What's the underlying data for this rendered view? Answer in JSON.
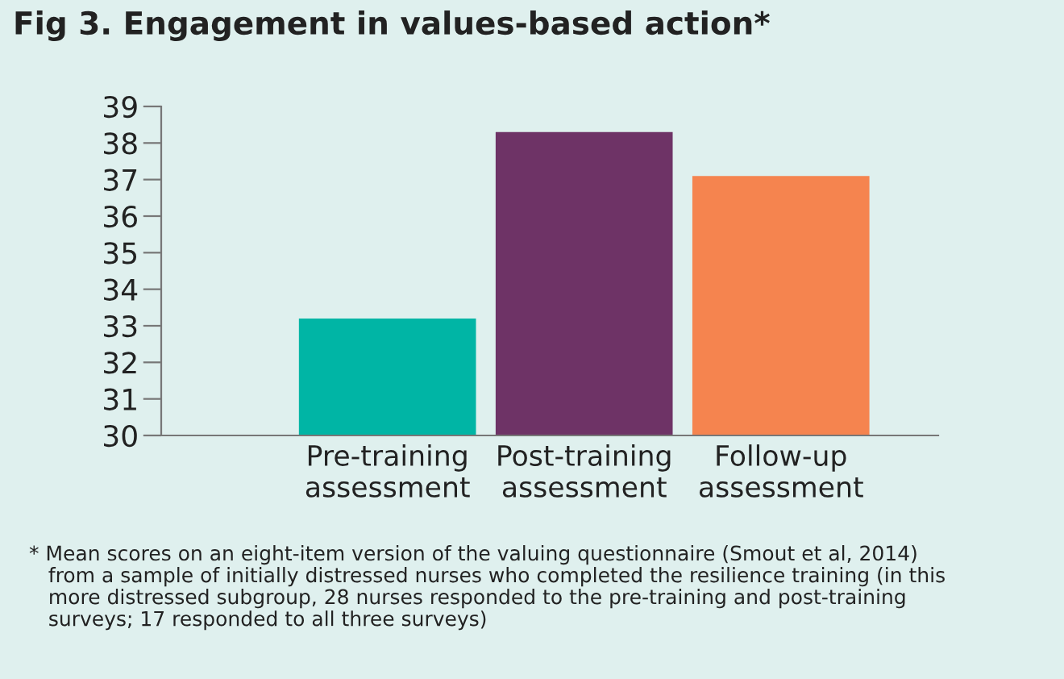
{
  "chart_data": {
    "type": "bar",
    "title": "Fig 3. Engagement in values-based action*",
    "categories": [
      "Pre-training\nassessment",
      "Post-training\nassessment",
      "Follow-up\nassessment"
    ],
    "values": [
      33.2,
      38.3,
      37.1
    ],
    "colors": [
      "#00b5a5",
      "#6e3366",
      "#f5844f"
    ],
    "ylim": [
      30,
      39
    ],
    "yticks": [
      30,
      31,
      32,
      33,
      34,
      35,
      36,
      37,
      38,
      39
    ],
    "grid": false,
    "annotations": [
      "* Mean scores on an eight-item version of the valuing questionnaire (Smout et al, 2014)\n   from a sample of initially distressed nurses who completed the resilience training (in this\n   more distressed subgroup, 28 nurses responded to the pre-training and post-training\n   surveys; 17 responded to all three surveys)"
    ]
  }
}
